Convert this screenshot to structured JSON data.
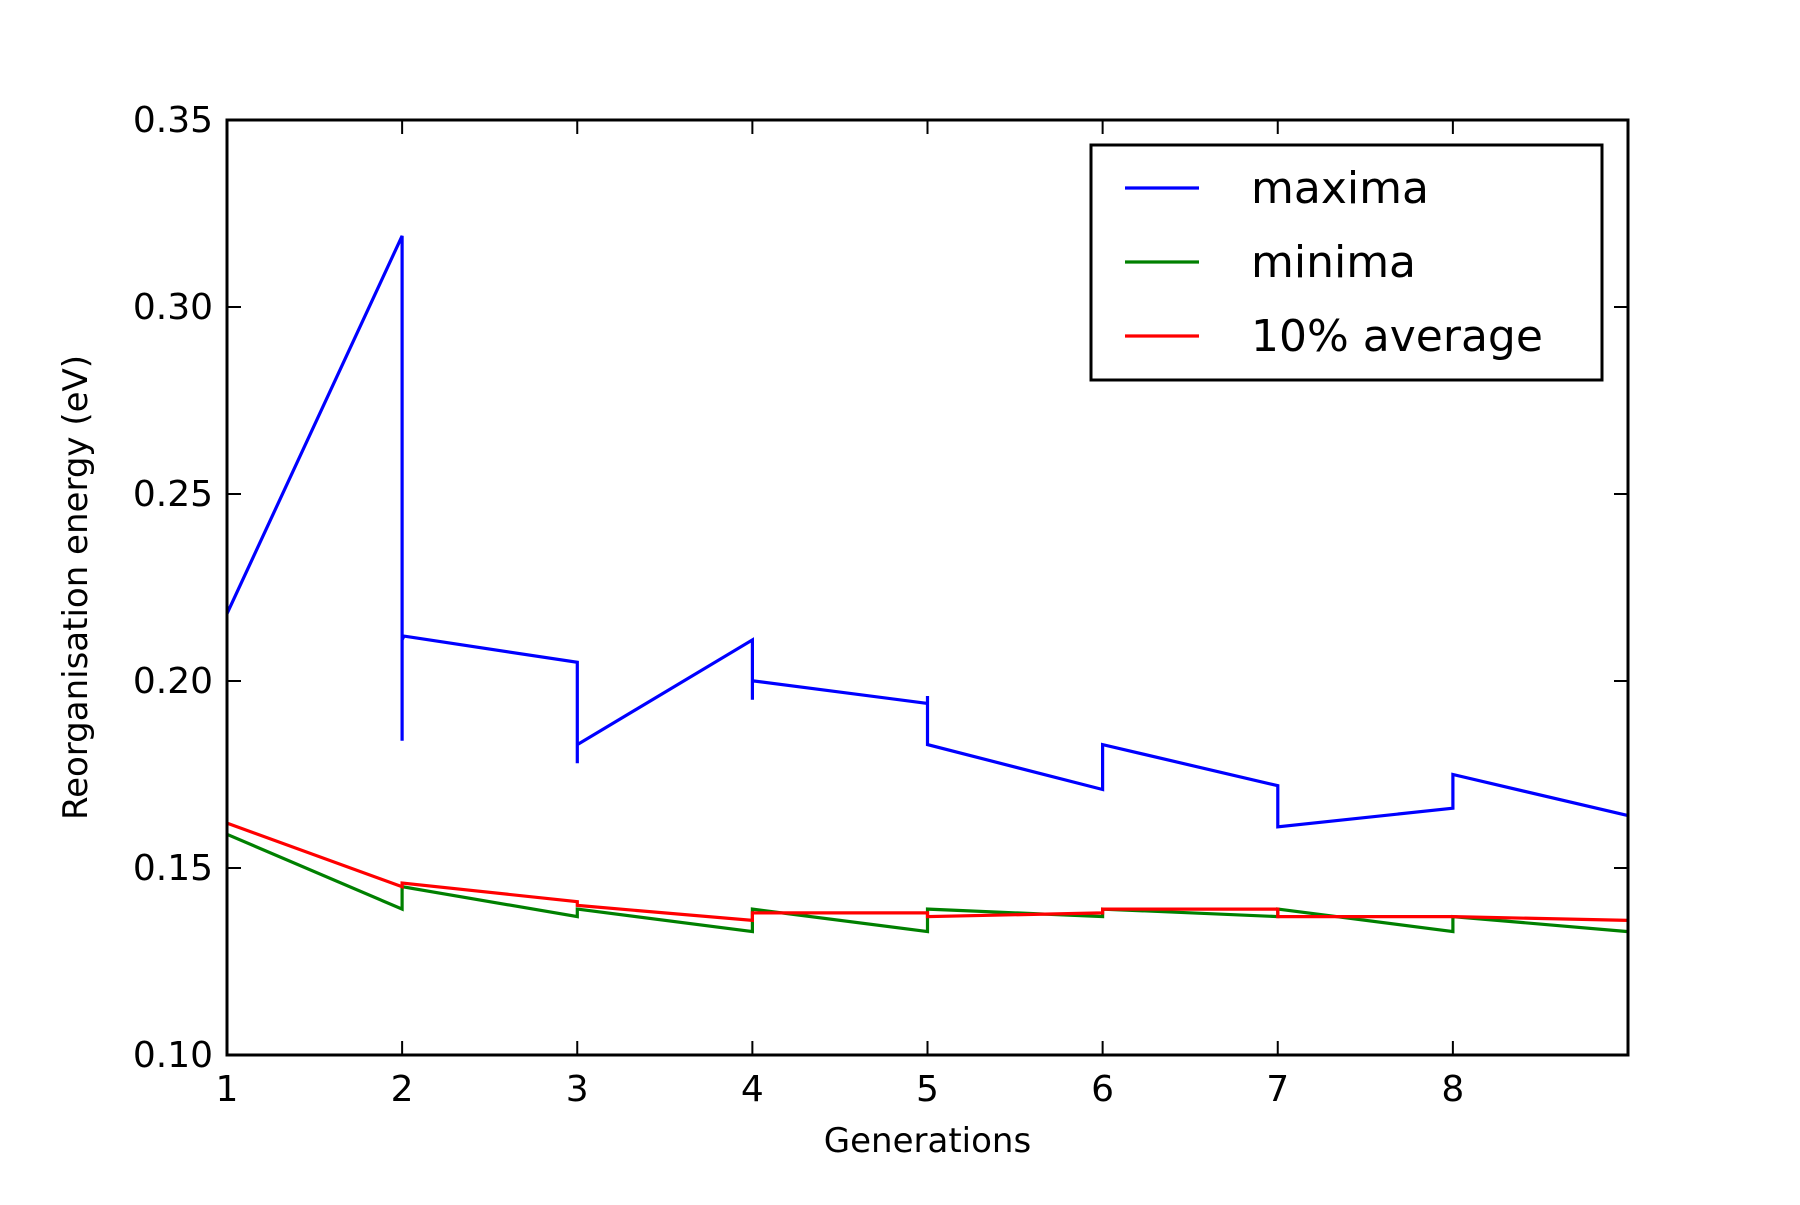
{
  "chart_data": {
    "type": "line",
    "title": "",
    "xlabel": "Generations",
    "ylabel": "Reorganisation energy (eV)",
    "xlim": [
      1,
      9
    ],
    "ylim": [
      0.1,
      0.35
    ],
    "xticks": [
      1,
      2,
      3,
      4,
      5,
      6,
      7,
      8
    ],
    "xtick_labels": [
      "1",
      "2",
      "3",
      "4",
      "5",
      "6",
      "7",
      "8"
    ],
    "yticks": [
      0.1,
      0.15,
      0.2,
      0.25,
      0.3,
      0.35
    ],
    "ytick_labels": [
      "0.10",
      "0.15",
      "0.20",
      "0.25",
      "0.30",
      "0.35"
    ],
    "grid": false,
    "legend_position": "top-right",
    "series": [
      {
        "name": "maxima",
        "color": "#0000ff",
        "x": [
          1,
          2,
          2,
          2,
          2,
          2.01,
          3,
          3,
          3,
          4,
          4,
          4,
          4.01,
          5,
          5,
          5,
          6,
          6,
          7,
          7,
          8,
          8,
          9
        ],
        "y": [
          0.218,
          0.319,
          0.184,
          0.217,
          0.211,
          0.212,
          0.205,
          0.178,
          0.183,
          0.211,
          0.195,
          0.2,
          0.2,
          0.194,
          0.196,
          0.183,
          0.171,
          0.183,
          0.172,
          0.161,
          0.166,
          0.175,
          0.164
        ]
      },
      {
        "name": "minima",
        "color": "#008000",
        "x": [
          1,
          2,
          2,
          3,
          3,
          4,
          4,
          5,
          5,
          6,
          6,
          7,
          7,
          8,
          8,
          9
        ],
        "y": [
          0.159,
          0.139,
          0.145,
          0.137,
          0.139,
          0.133,
          0.139,
          0.133,
          0.139,
          0.137,
          0.139,
          0.137,
          0.139,
          0.133,
          0.137,
          0.133
        ]
      },
      {
        "name": "10% average",
        "color": "#ff0000",
        "x": [
          1,
          2,
          2,
          3,
          3,
          4,
          4,
          5,
          5,
          6,
          6,
          7,
          7,
          8,
          9
        ],
        "y": [
          0.162,
          0.145,
          0.146,
          0.141,
          0.14,
          0.136,
          0.138,
          0.138,
          0.137,
          0.138,
          0.139,
          0.139,
          0.137,
          0.137,
          0.136
        ]
      }
    ]
  }
}
